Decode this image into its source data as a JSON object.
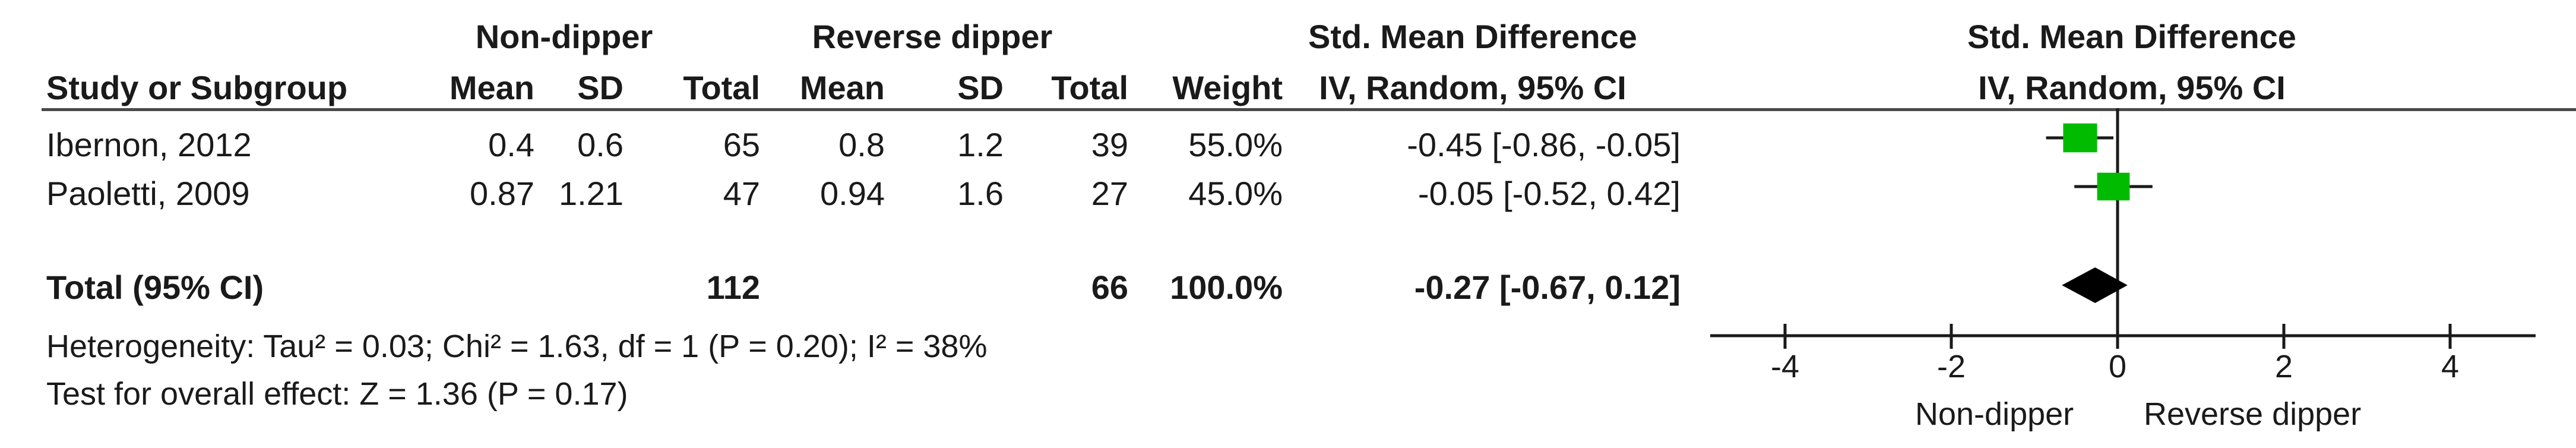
{
  "header": {
    "group1": "Non-dipper",
    "group2": "Reverse dipper",
    "effect_title": "Std. Mean Difference",
    "plot_title": "Std. Mean Difference",
    "study_col": "Study or Subgroup",
    "mean1": "Mean",
    "sd1": "SD",
    "total1": "Total",
    "mean2": "Mean",
    "sd2": "SD",
    "total2": "Total",
    "weight": "Weight",
    "effect_sub": "IV, Random, 95% CI",
    "plot_sub": "IV, Random, 95% CI"
  },
  "rows": [
    {
      "study": "Ibernon, 2012",
      "mean1": "0.4",
      "sd1": "0.6",
      "total1": "65",
      "mean2": "0.8",
      "sd2": "1.2",
      "total2": "39",
      "weight": "55.0%",
      "ci": "-0.45 [-0.86, -0.05]"
    },
    {
      "study": "Paoletti, 2009",
      "mean1": "0.87",
      "sd1": "1.21",
      "total1": "47",
      "mean2": "0.94",
      "sd2": "1.6",
      "total2": "27",
      "weight": "45.0%",
      "ci": "-0.05 [-0.52, 0.42]"
    }
  ],
  "total": {
    "label": "Total (95% CI)",
    "total1": "112",
    "total2": "66",
    "weight": "100.0%",
    "ci": "-0.27 [-0.67, 0.12]"
  },
  "heterogeneity": "Heterogeneity: Tau² = 0.03; Chi² = 1.63, df = 1 (P = 0.20); I² = 38%",
  "overall": "Test for overall effect: Z = 1.36 (P = 0.17)",
  "axis": {
    "left_label": "Non-dipper",
    "right_label": "Reverse dipper"
  },
  "chart_data": {
    "type": "forest",
    "xlim": [
      -5,
      5
    ],
    "ticks": [
      -4,
      -2,
      0,
      2,
      4
    ],
    "tick_labels": [
      "-4",
      "-2",
      "0",
      "2",
      "4"
    ],
    "studies": [
      {
        "name": "Ibernon, 2012",
        "smd": -0.45,
        "lower": -0.86,
        "upper": -0.05,
        "weight": 55.0
      },
      {
        "name": "Paoletti, 2009",
        "smd": -0.05,
        "lower": -0.52,
        "upper": 0.42,
        "weight": 45.0
      }
    ],
    "pooled": {
      "smd": -0.27,
      "lower": -0.67,
      "upper": 0.12
    },
    "colors": {
      "study_marker": "#00bb00",
      "pooled_marker": "#000000",
      "line": "#1a1a1a"
    }
  }
}
